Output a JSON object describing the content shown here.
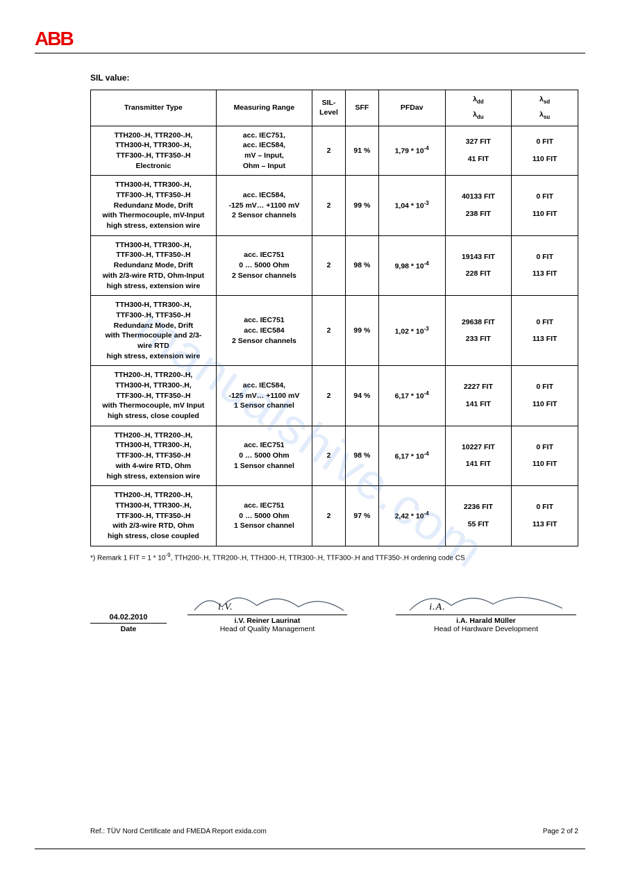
{
  "logo_text": "ABB",
  "section_title": "SIL value:",
  "watermark_text": "manualshive.com",
  "table": {
    "headers": {
      "transmitter": "Transmitter Type",
      "range": "Measuring Range",
      "sil": "SIL-\nLevel",
      "sff": "SFF",
      "pfdav": "PFDav",
      "lambda_dd": "λ",
      "lambda_dd_sub": "dd",
      "lambda_du": "λ",
      "lambda_du_sub": "du",
      "lambda_sd": "λ",
      "lambda_sd_sub": "sd",
      "lambda_su": "λ",
      "lambda_su_sub": "su"
    },
    "rows": [
      {
        "transmitter": "TTH200-.H, TTR200-.H,\nTTH300-H, TTR300-.H,\nTTF300-.H, TTF350-.H\nElectronic",
        "range": "acc. IEC751,\nacc. IEC584,\nmV – Input,\nOhm – Input",
        "sil": "2",
        "sff": "91 %",
        "pfdav_base": "1,79 * 10",
        "pfdav_exp": "-4",
        "dd": "327 FIT",
        "du": "41 FIT",
        "sd": "0 FIT",
        "su": "110 FIT"
      },
      {
        "transmitter": "TTH300-H, TTR300-.H,\nTTF300-.H, TTF350-.H\nRedundanz Mode, Drift\nwith Thermocouple, mV-Input\nhigh stress, extension wire",
        "range": "acc. IEC584,\n-125 mV… +1100 mV\n2 Sensor channels",
        "sil": "2",
        "sff": "99 %",
        "pfdav_base": "1,04 * 10",
        "pfdav_exp": "-3",
        "dd": "40133 FIT",
        "du": "238 FIT",
        "sd": "0 FIT",
        "su": "110 FIT"
      },
      {
        "transmitter": "TTH300-H, TTR300-.H,\nTTF300-.H, TTF350-.H\nRedundanz Mode, Drift\nwith 2/3-wire RTD, Ohm-Input\nhigh stress, extension wire",
        "range": "acc. IEC751\n0 … 5000 Ohm\n2 Sensor channels",
        "sil": "2",
        "sff": "98 %",
        "pfdav_base": "9,98 * 10",
        "pfdav_exp": "-4",
        "dd": "19143 FIT",
        "du": "228 FIT",
        "sd": "0 FIT",
        "su": "113 FIT"
      },
      {
        "transmitter": "TTH300-H, TTR300-.H,\nTTF300-.H, TTF350-.H\nRedundanz Mode, Drift\nwith Thermocouple and 2/3-\nwire RTD\nhigh stress, extension wire",
        "range": "acc. IEC751\nacc. IEC584\n2 Sensor channels",
        "sil": "2",
        "sff": "99 %",
        "pfdav_base": "1,02 * 10",
        "pfdav_exp": "-3",
        "dd": "29638 FIT",
        "du": "233 FIT",
        "sd": "0 FIT",
        "su": "113 FIT"
      },
      {
        "transmitter": "TTH200-.H, TTR200-.H,\nTTH300-H, TTR300-.H,\nTTF300-.H, TTF350-.H\nwith Thermocouple, mV Input\nhigh stress, close coupled",
        "range": "acc. IEC584,\n-125 mV… +1100 mV\n1 Sensor channel",
        "sil": "2",
        "sff": "94 %",
        "pfdav_base": "6,17 * 10",
        "pfdav_exp": "-4",
        "dd": "2227 FIT",
        "du": "141 FIT",
        "sd": "0 FIT",
        "su": "110 FIT"
      },
      {
        "transmitter": "TTH200-.H, TTR200-.H,\nTTH300-H, TTR300-.H,\nTTF300-.H, TTF350-.H\nwith 4-wire RTD, Ohm\nhigh stress, extension wire",
        "range": "acc. IEC751\n0 … 5000 Ohm\n1 Sensor channel",
        "sil": "2",
        "sff": "98 %",
        "pfdav_base": "6,17 * 10",
        "pfdav_exp": "-4",
        "dd": "10227 FIT",
        "du": "141 FIT",
        "sd": "0 FIT",
        "su": "110 FIT"
      },
      {
        "transmitter": "TTH200-.H, TTR200-.H,\nTTH300-H, TTR300-.H,\nTTF300-.H, TTF350-.H\nwith 2/3-wire RTD, Ohm\nhigh stress, close coupled",
        "range": "acc. IEC751\n0 … 5000 Ohm\n1 Sensor channel",
        "sil": "2",
        "sff": "97 %",
        "pfdav_base": "2,42 * 10",
        "pfdav_exp": "-4",
        "dd": "2236 FIT",
        "du": "55 FIT",
        "sd": "0 FIT",
        "su": "113 FIT"
      }
    ]
  },
  "remark_pre": "*) Remark  1 FIT = 1 * 10",
  "remark_exp": "-9",
  "remark_post": ", TTH200-.H, TTR200-.H, TTH300-.H, TTR300-.H, TTF300-.H and TTF350-.H ordering code CS",
  "signature": {
    "date_value": "04.02.2010",
    "date_label": "Date",
    "sig1_scrawl": "i.V.",
    "sig1_name": "i.V. Reiner Laurinat",
    "sig1_role": "Head of Quality Management",
    "sig2_scrawl": "i.A.",
    "sig2_name": "i.A. Harald Müller",
    "sig2_role": "Head of Hardware Development"
  },
  "footer": {
    "ref": "Ref.: TÜV Nord Certificate and FMEDA Report exida.com",
    "page": "Page 2 of 2"
  },
  "colors": {
    "logo": "#e60000",
    "text": "#000000",
    "watermark": "rgba(70,130,220,0.15)"
  }
}
